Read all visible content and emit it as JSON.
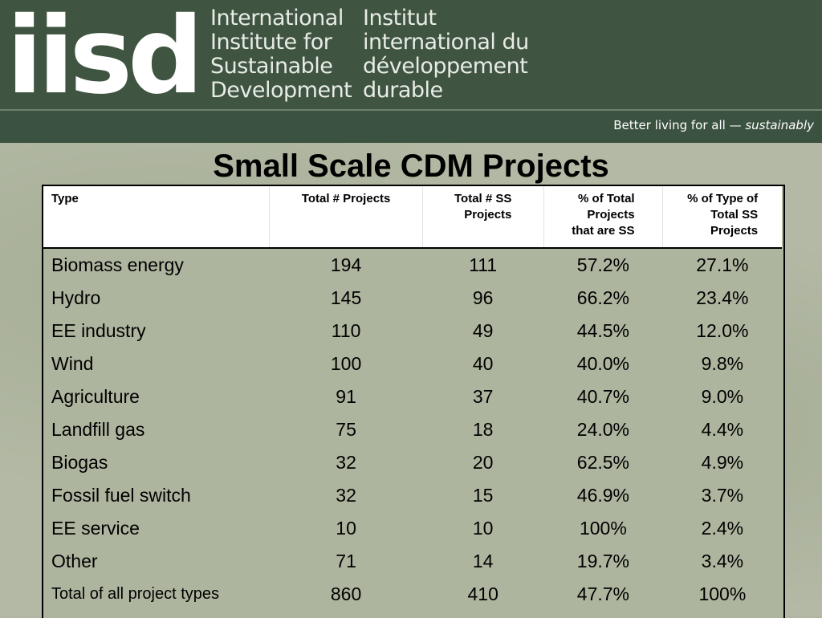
{
  "header": {
    "logo_text": "iisd",
    "org_name_en": [
      "International",
      "Institute for",
      "Sustainable",
      "Development"
    ],
    "org_name_fr": [
      "Institut",
      "international du",
      "développement",
      "durable"
    ],
    "tagline_prefix": "Better living for all — ",
    "tagline_emphasis": "sustainably"
  },
  "title": "Small Scale CDM Projects",
  "table": {
    "columns": [
      "Type",
      "Total # Projects",
      "Total # SS\nProjects",
      "% of Total\nProjects\nthat are SS",
      "% of Type of\nTotal SS\nProjects"
    ],
    "rows": [
      [
        "Biomass energy",
        "194",
        "111",
        "57.2%",
        "27.1%"
      ],
      [
        "Hydro",
        "145",
        "96",
        "66.2%",
        "23.4%"
      ],
      [
        "EE industry",
        "110",
        "49",
        "44.5%",
        "12.0%"
      ],
      [
        "Wind",
        "100",
        "40",
        "40.0%",
        "9.8%"
      ],
      [
        "Agriculture",
        "91",
        "37",
        "40.7%",
        "9.0%"
      ],
      [
        "Landfill gas",
        "75",
        "18",
        "24.0%",
        "4.4%"
      ],
      [
        "Biogas",
        "32",
        "20",
        "62.5%",
        "4.9%"
      ],
      [
        "Fossil fuel switch",
        "32",
        "15",
        "46.9%",
        "3.7%"
      ],
      [
        "EE service",
        "10",
        "10",
        "100%",
        "2.4%"
      ],
      [
        "Other",
        "71",
        "14",
        "19.7%",
        "3.4%"
      ]
    ],
    "total_row": [
      "Total of all project types",
      "860",
      "410",
      "47.7%",
      "100%"
    ]
  }
}
